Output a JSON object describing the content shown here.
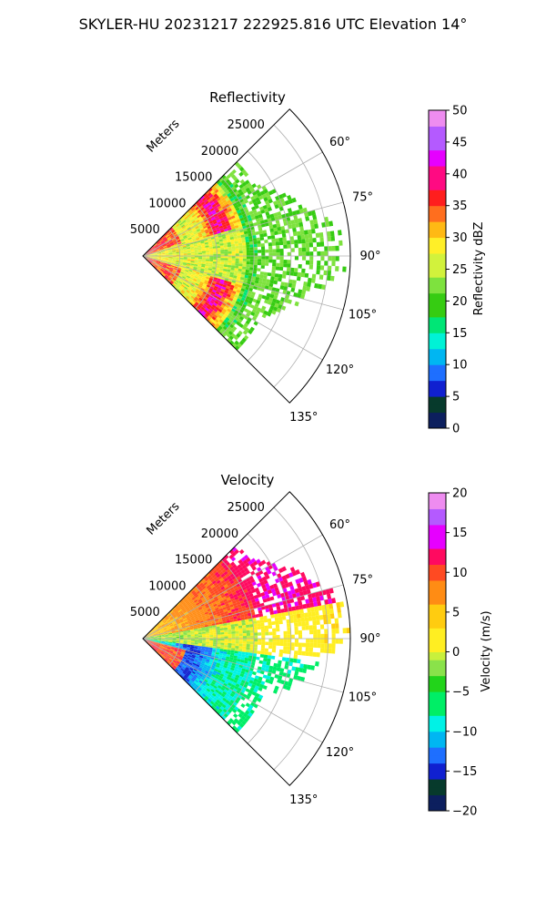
{
  "figure_title": "SKYLER-HU  20231217  222925.816 UTC Elevation 14°",
  "chart_data": [
    {
      "type": "heatmap",
      "projection": "polar-sector",
      "title": "Reflectivity",
      "radial_label": "Meters",
      "theta_range_deg": [
        45,
        135
      ],
      "r_max_m": 28000,
      "r_ticks": [
        5000,
        10000,
        15000,
        20000,
        25000
      ],
      "r_tick_labels": [
        "5000",
        "10000",
        "15000",
        "20000",
        "25000"
      ],
      "theta_ticks": [
        60,
        75,
        90,
        105,
        120,
        135
      ],
      "theta_tick_labels": [
        "60°",
        "75°",
        "90°",
        "105°",
        "120°",
        "135°"
      ],
      "grid": true,
      "colorbar": {
        "label": "Reflectivity dBZ",
        "range": [
          0,
          50
        ],
        "ticks": [
          0,
          5,
          10,
          15,
          20,
          25,
          30,
          35,
          40,
          45,
          50
        ],
        "tick_labels": [
          "0",
          "5",
          "10",
          "15",
          "20",
          "25",
          "30",
          "35",
          "40",
          "45",
          "50"
        ],
        "stops": [
          {
            "v": 0,
            "c": "#0c1f5e"
          },
          {
            "v": 3,
            "c": "#073a2c"
          },
          {
            "v": 5,
            "c": "#1020d0"
          },
          {
            "v": 7,
            "c": "#1e6fff"
          },
          {
            "v": 10,
            "c": "#00b6f2"
          },
          {
            "v": 13,
            "c": "#00f2d6"
          },
          {
            "v": 15,
            "c": "#00e676"
          },
          {
            "v": 18,
            "c": "#36cc12"
          },
          {
            "v": 21,
            "c": "#7ee23e"
          },
          {
            "v": 24,
            "c": "#d2f23c"
          },
          {
            "v": 27,
            "c": "#ffef28"
          },
          {
            "v": 30,
            "c": "#ffb914"
          },
          {
            "v": 33,
            "c": "#ff6e1e"
          },
          {
            "v": 35,
            "c": "#ff1e1e"
          },
          {
            "v": 38,
            "c": "#ff0a82"
          },
          {
            "v": 41,
            "c": "#e600ff"
          },
          {
            "v": 44,
            "c": "#b45aff"
          },
          {
            "v": 47,
            "c": "#ee8cf0"
          },
          {
            "v": 50,
            "c": "#fde6fd"
          }
        ]
      }
    },
    {
      "type": "heatmap",
      "projection": "polar-sector",
      "title": "Velocity",
      "radial_label": "Meters",
      "theta_range_deg": [
        45,
        135
      ],
      "r_max_m": 28000,
      "r_ticks": [
        5000,
        10000,
        15000,
        20000,
        25000
      ],
      "r_tick_labels": [
        "5000",
        "10000",
        "15000",
        "20000",
        "25000"
      ],
      "theta_ticks": [
        60,
        75,
        90,
        105,
        120,
        135
      ],
      "theta_tick_labels": [
        "60°",
        "75°",
        "90°",
        "105°",
        "120°",
        "135°"
      ],
      "grid": true,
      "colorbar": {
        "label": "Velocity (m/s)",
        "range": [
          -20,
          20
        ],
        "ticks": [
          -20,
          -15,
          -10,
          -5,
          0,
          5,
          10,
          15,
          20
        ],
        "tick_labels": [
          "−20",
          "−15",
          "−10",
          "−5",
          "0",
          "5",
          "10",
          "15",
          "20"
        ],
        "stops": [
          {
            "v": -20,
            "c": "#0c1f5e"
          },
          {
            "v": -18,
            "c": "#073a2c"
          },
          {
            "v": -16,
            "c": "#1020d0"
          },
          {
            "v": -14,
            "c": "#1e6fff"
          },
          {
            "v": -12,
            "c": "#00b6f2"
          },
          {
            "v": -10,
            "c": "#00f2e6"
          },
          {
            "v": -8,
            "c": "#00ee66"
          },
          {
            "v": -5,
            "c": "#22d41a"
          },
          {
            "v": -3,
            "c": "#8ae24a"
          },
          {
            "v": -1,
            "c": "#c8f03c"
          },
          {
            "v": 0,
            "c": "#ffee22"
          },
          {
            "v": 3,
            "c": "#ffcc10"
          },
          {
            "v": 6,
            "c": "#ff8c14"
          },
          {
            "v": 9,
            "c": "#ff4a22"
          },
          {
            "v": 11,
            "c": "#ff0a60"
          },
          {
            "v": 13,
            "c": "#e600ff"
          },
          {
            "v": 16,
            "c": "#b45aff"
          },
          {
            "v": 18,
            "c": "#ee8cf0"
          },
          {
            "v": 20,
            "c": "#fde6fd"
          }
        ]
      }
    }
  ]
}
